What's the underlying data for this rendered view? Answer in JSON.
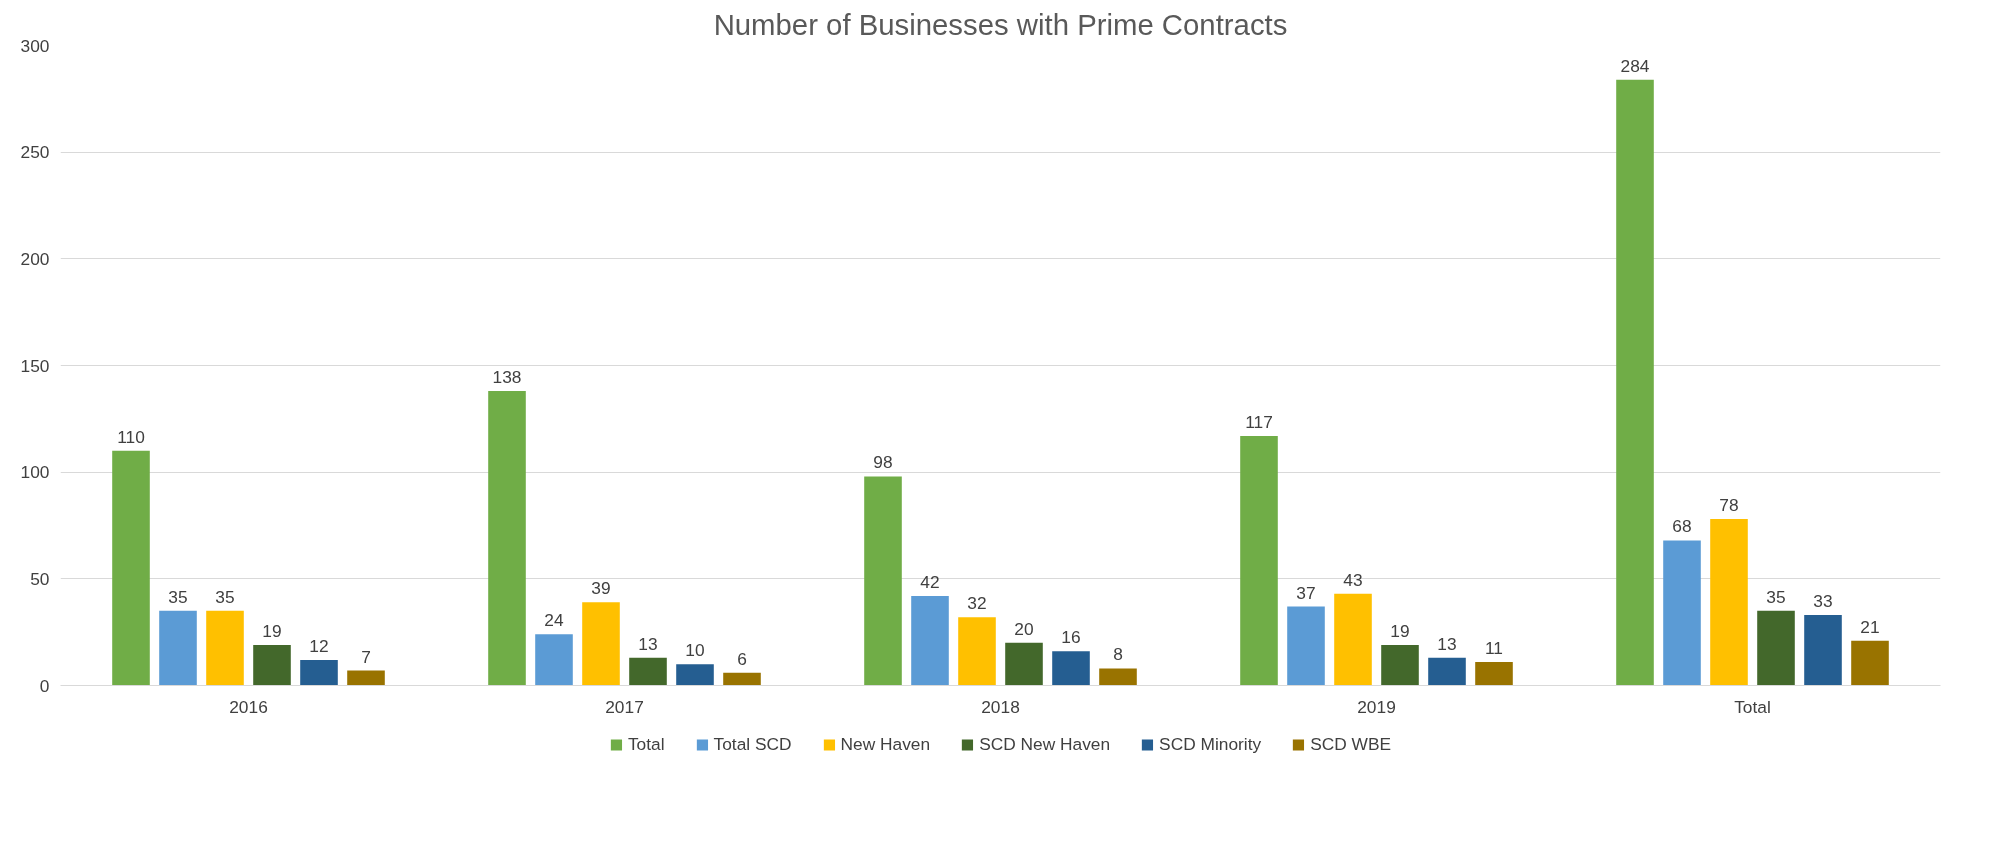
{
  "chart_data": {
    "type": "bar",
    "title": "Number of Businesses with Prime Contracts",
    "categories": [
      "2016",
      "2017",
      "2018",
      "2019",
      "Total"
    ],
    "series": [
      {
        "name": "Total",
        "color": "#70ad47",
        "values": [
          110,
          138,
          98,
          117,
          284
        ]
      },
      {
        "name": "Total SCD",
        "color": "#5b9bd5",
        "values": [
          35,
          24,
          42,
          37,
          68
        ]
      },
      {
        "name": "New Haven",
        "color": "#ffc000",
        "values": [
          35,
          39,
          32,
          43,
          78
        ]
      },
      {
        "name": "SCD New Haven",
        "color": "#43682b",
        "values": [
          19,
          13,
          20,
          19,
          35
        ]
      },
      {
        "name": "SCD Minority",
        "color": "#255e91",
        "values": [
          12,
          10,
          16,
          13,
          33
        ]
      },
      {
        "name": "SCD WBE",
        "color": "#997300",
        "values": [
          7,
          6,
          8,
          11,
          21
        ]
      }
    ],
    "ylim": [
      0,
      300
    ],
    "yticks": [
      0,
      50,
      100,
      150,
      200,
      250,
      300
    ],
    "grid": "y",
    "legend": "bottom",
    "data_labels": true
  }
}
